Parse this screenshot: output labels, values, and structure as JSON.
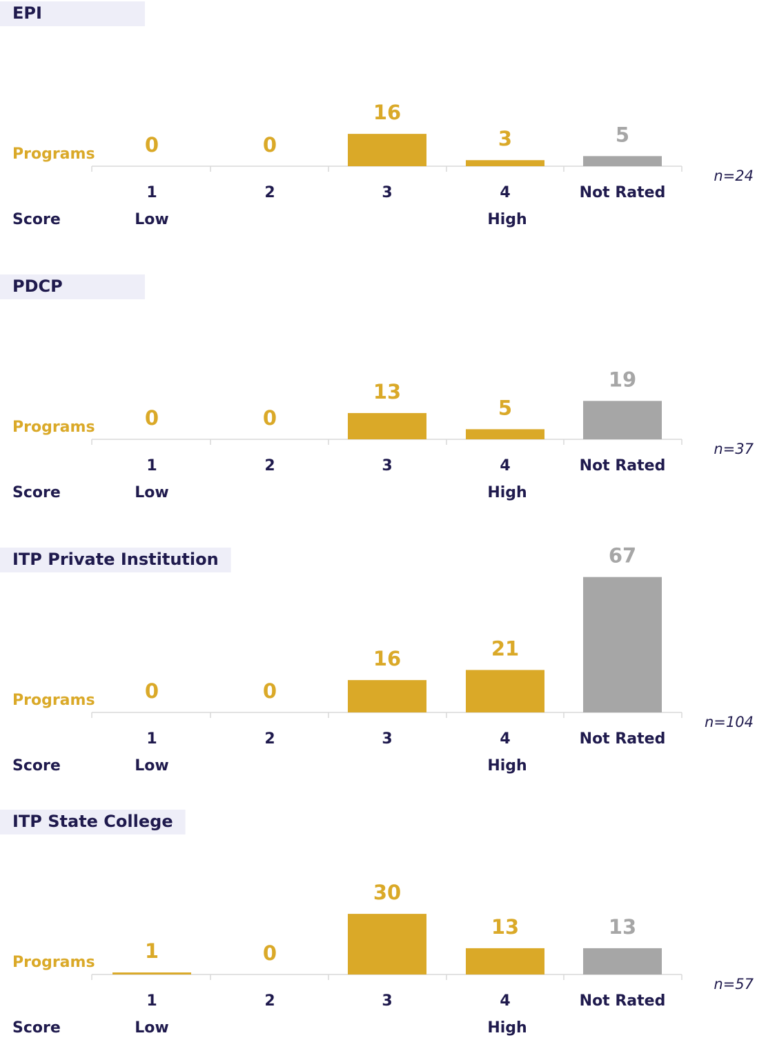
{
  "chart_data": [
    {
      "type": "bar",
      "title": "EPI",
      "y_label": "Programs",
      "x_label": "Score",
      "categories": [
        "1",
        "2",
        "3",
        "4",
        "Not Rated"
      ],
      "category_notes": [
        "Low",
        null,
        null,
        "High",
        null
      ],
      "values": [
        0,
        0,
        16,
        3,
        5
      ],
      "colors": [
        "#DAA928",
        "#DAA928",
        "#DAA928",
        "#DAA928",
        "#A6A6A6"
      ],
      "note": "n=24"
    },
    {
      "type": "bar",
      "title": "PDCP",
      "y_label": "Programs",
      "x_label": "Score",
      "categories": [
        "1",
        "2",
        "3",
        "4",
        "Not Rated"
      ],
      "category_notes": [
        "Low",
        null,
        null,
        "High",
        null
      ],
      "values": [
        0,
        0,
        13,
        5,
        19
      ],
      "colors": [
        "#DAA928",
        "#DAA928",
        "#DAA928",
        "#DAA928",
        "#A6A6A6"
      ],
      "note": "n=37"
    },
    {
      "type": "bar",
      "title": "ITP Private Institution",
      "y_label": "Programs",
      "x_label": "Score",
      "categories": [
        "1",
        "2",
        "3",
        "4",
        "Not Rated"
      ],
      "category_notes": [
        "Low",
        null,
        null,
        "High",
        null
      ],
      "values": [
        0,
        0,
        16,
        21,
        67
      ],
      "colors": [
        "#DAA928",
        "#DAA928",
        "#DAA928",
        "#DAA928",
        "#A6A6A6"
      ],
      "note": "n=104"
    },
    {
      "type": "bar",
      "title": "ITP State College",
      "y_label": "Programs",
      "x_label": "Score",
      "categories": [
        "1",
        "2",
        "3",
        "4",
        "Not Rated"
      ],
      "category_notes": [
        "Low",
        null,
        null,
        "High",
        null
      ],
      "values": [
        1,
        0,
        30,
        13,
        13
      ],
      "colors": [
        "#DAA928",
        "#DAA928",
        "#DAA928",
        "#DAA928",
        "#A6A6A6"
      ],
      "note": "n=57"
    }
  ]
}
